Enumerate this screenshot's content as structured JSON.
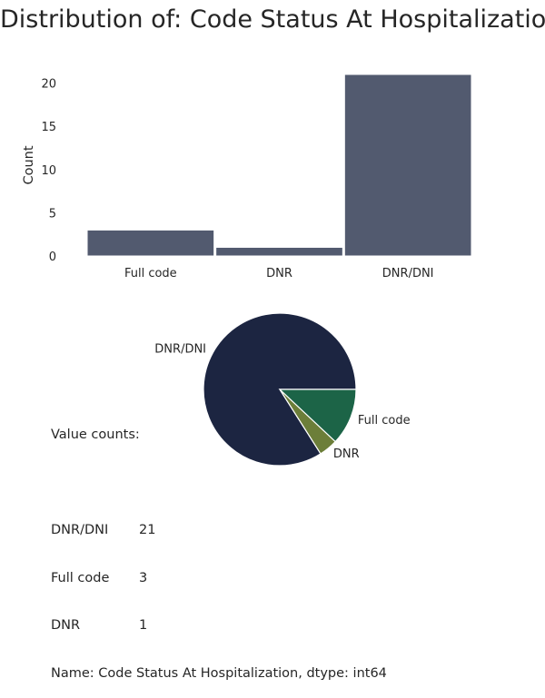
{
  "title": "Distribution of: Code Status At Hospitalization",
  "chart_data": [
    {
      "type": "bar",
      "categories": [
        "Full code",
        "DNR",
        "DNR/DNI"
      ],
      "values": [
        3,
        1,
        21
      ],
      "ylabel": "Count",
      "xlabel": "",
      "ylim": [
        0,
        21
      ],
      "yticks": [
        "0",
        "5",
        "10",
        "15",
        "20"
      ],
      "bar_color": "#525a6f",
      "grid": false
    },
    {
      "type": "pie",
      "labels": [
        "DNR/DNI",
        "DNR",
        "Full code"
      ],
      "values": [
        21,
        1,
        3
      ],
      "colors": [
        "#1c2541",
        "#6c7e39",
        "#1c6447"
      ]
    }
  ],
  "value_counts": {
    "header": "Value counts:",
    "rows": [
      {
        "category": "DNR/DNI",
        "count": "21"
      },
      {
        "category": "Full code",
        "count": "3"
      },
      {
        "category": "DNR",
        "count": "1"
      }
    ],
    "footer": "Name: Code Status At Hospitalization, dtype: int64"
  }
}
